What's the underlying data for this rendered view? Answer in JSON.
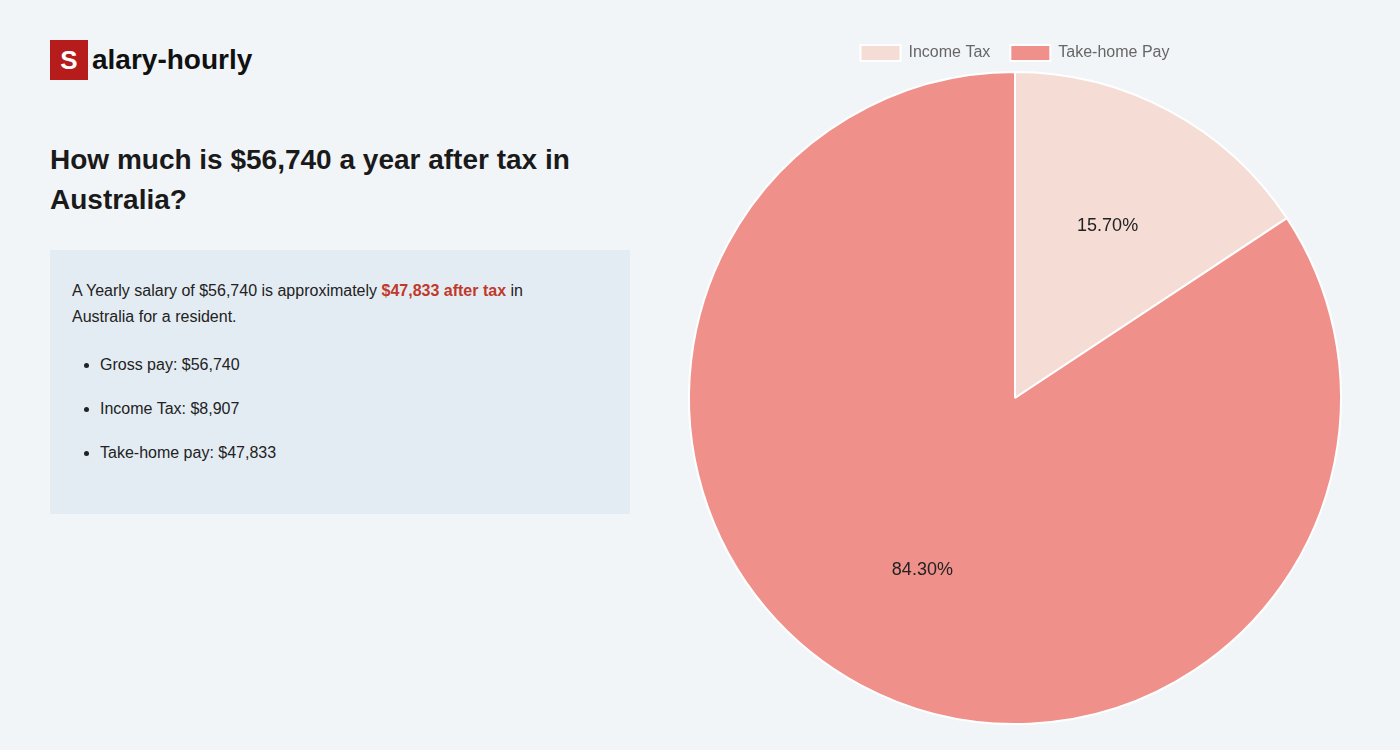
{
  "chart_data": {
    "type": "pie",
    "title": [
      "How much is $56,740 a year after tax in",
      "Australia?"
    ],
    "annotations": [
      "S",
      "alary-hourly",
      "A Yearly salary of $56,740 is approximately ",
      "$47,833 after tax",
      " in",
      "Australia for a resident.",
      "Gross pay: $56,740",
      "Income Tax: $8,907",
      "Take-home pay: $47,833"
    ],
    "categories": [
      "Income Tax",
      "Take-home Pay"
    ],
    "values": [
      15.7,
      84.3
    ],
    "value_labels": [
      "15.70%",
      "84.30%"
    ],
    "colors": [
      "#f5ddd6",
      "#f0908a"
    ],
    "data_labels": true,
    "legend": "top"
  }
}
